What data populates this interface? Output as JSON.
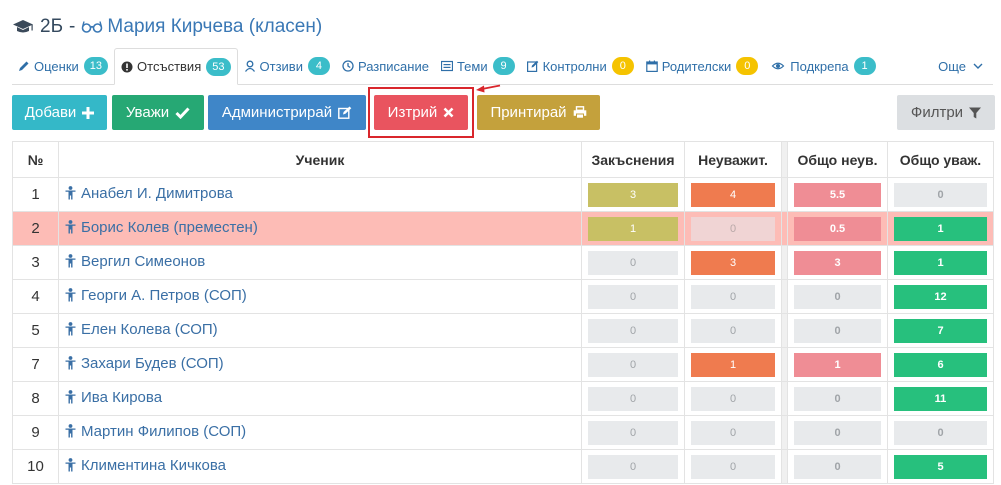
{
  "header": {
    "class_name": "2Б",
    "separator": "-",
    "teacher": "Мария Кирчева (класен)"
  },
  "tabs": [
    {
      "label": "Оценки",
      "badge": "13",
      "badge_color": "teal",
      "icon": "pencil-icon"
    },
    {
      "label": "Отсъствия",
      "badge": "53",
      "badge_color": "teal",
      "icon": "exclamation-circle-icon"
    },
    {
      "label": "Отзиви",
      "badge": "4",
      "badge_color": "teal",
      "icon": "user-feedback-icon"
    },
    {
      "label": "Разписание",
      "badge": "",
      "icon": "clock-icon"
    },
    {
      "label": "Теми",
      "badge": "9",
      "badge_color": "teal",
      "icon": "list-icon"
    },
    {
      "label": "Контролни",
      "badge": "0",
      "badge_color": "yellow",
      "icon": "edit-icon"
    },
    {
      "label": "Родителски",
      "badge": "0",
      "badge_color": "yellow",
      "icon": "calendar-icon"
    },
    {
      "label": "Подкрепа",
      "badge": "1",
      "badge_color": "teal",
      "icon": "eye-icon"
    }
  ],
  "more_label": "Още",
  "toolbar": {
    "add": "Добави",
    "excuse": "Уважи",
    "admin": "Администрирай",
    "delete": "Изтрий",
    "print": "Принтирай",
    "filter": "Филтри"
  },
  "table": {
    "headers": {
      "num": "№",
      "student": "Ученик",
      "late": "Закъснения",
      "unexcused": "Неуважит.",
      "total_unexcused": "Общо неув.",
      "total_excused": "Общо уваж."
    },
    "rows": [
      {
        "num": "1",
        "name": "Анабел И. Димитрова",
        "late": "3",
        "unexcused": "4",
        "total_unexcused": "5.5",
        "total_excused": "0"
      },
      {
        "num": "2",
        "name": "Борис Колев (преместен)",
        "late": "1",
        "unexcused": "0",
        "total_unexcused": "0.5",
        "total_excused": "1"
      },
      {
        "num": "3",
        "name": "Вергил Симеонов",
        "late": "0",
        "unexcused": "3",
        "total_unexcused": "3",
        "total_excused": "1"
      },
      {
        "num": "4",
        "name": "Георги А. Петров (СОП)",
        "late": "0",
        "unexcused": "0",
        "total_unexcused": "0",
        "total_excused": "12"
      },
      {
        "num": "5",
        "name": "Елен Колева (СОП)",
        "late": "0",
        "unexcused": "0",
        "total_unexcused": "0",
        "total_excused": "7"
      },
      {
        "num": "7",
        "name": "Захари Будев (СОП)",
        "late": "0",
        "unexcused": "1",
        "total_unexcused": "1",
        "total_excused": "6"
      },
      {
        "num": "8",
        "name": "Ива Кирова",
        "late": "0",
        "unexcused": "0",
        "total_unexcused": "0",
        "total_excused": "11"
      },
      {
        "num": "9",
        "name": "Мартин Филипов (СОП)",
        "late": "0",
        "unexcused": "0",
        "total_unexcused": "0",
        "total_excused": "0"
      },
      {
        "num": "10",
        "name": "Климентина Кичкова",
        "late": "0",
        "unexcused": "0",
        "total_unexcused": "0",
        "total_excused": "5"
      }
    ]
  },
  "colors": {
    "late_nonzero": "#c8c064",
    "unexcused_nonzero": "#ef7b4f",
    "total_unexcused_nonzero": "#ef8d95",
    "total_excused_nonzero": "#27c07d",
    "zero": "#e8eaec",
    "moved_row": "#fdbcb6",
    "delete_highlight": "#d9262c"
  },
  "highlighted_row": "2"
}
